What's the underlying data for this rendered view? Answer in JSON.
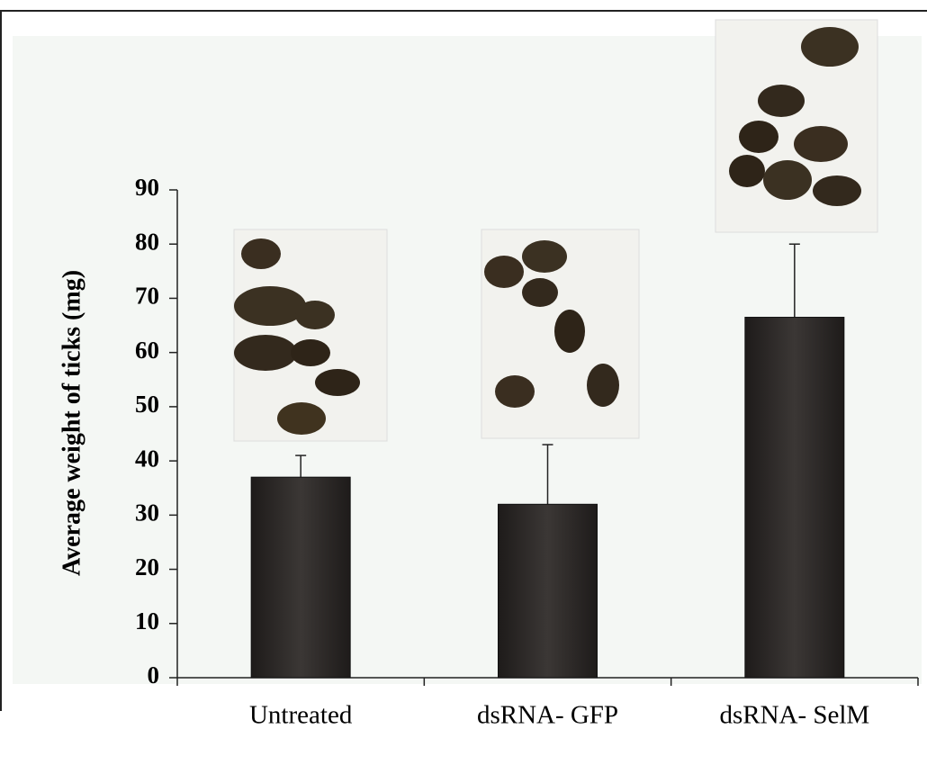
{
  "chart_data": {
    "type": "bar",
    "y_label": "Average weight of ticks (mg)",
    "categories": [
      "Untreated",
      "dsRNA- GFP",
      "dsRNA- SelM"
    ],
    "values": [
      37,
      32,
      66.5
    ],
    "errors": [
      4,
      11,
      13.5
    ],
    "color": "#2e2a29",
    "ylim": [
      0,
      90
    ],
    "yticks": [
      0,
      10,
      20,
      30,
      40,
      50,
      60,
      70,
      80,
      90
    ],
    "grid": false
  }
}
